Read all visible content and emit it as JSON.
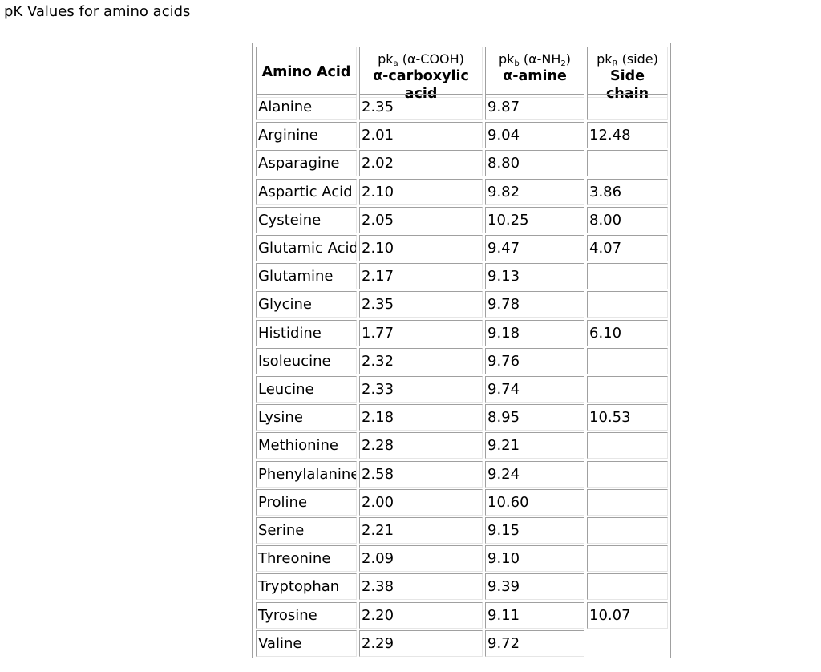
{
  "page": {
    "title": "pK Values for amino acids"
  },
  "table": {
    "headers": [
      {
        "main": "Amino Acid",
        "sub": ""
      },
      {
        "symbol": "pk",
        "symbol_sub": "a",
        "paren": " (α-COOH)",
        "main": "α-carboxylic acid"
      },
      {
        "symbol": "pk",
        "symbol_sub": "b",
        "paren": " (α-NH",
        "paren_sub": "2",
        "paren_end": ")",
        "main": "α-amine"
      },
      {
        "symbol": "pk",
        "symbol_sub": "R",
        "paren": " (side)",
        "main": "Side chain"
      }
    ],
    "rows": [
      {
        "name": "Alanine",
        "pka": "2.35",
        "pkb": "9.87",
        "pkr": ""
      },
      {
        "name": "Arginine",
        "pka": "2.01",
        "pkb": "9.04",
        "pkr": "12.48"
      },
      {
        "name": "Asparagine",
        "pka": "2.02",
        "pkb": "8.80",
        "pkr": ""
      },
      {
        "name": "Aspartic Acid",
        "pka": "2.10",
        "pkb": "9.82",
        "pkr": "3.86"
      },
      {
        "name": "Cysteine",
        "pka": "2.05",
        "pkb": "10.25",
        "pkr": "8.00"
      },
      {
        "name": "Glutamic Acid",
        "pka": "2.10",
        "pkb": "9.47",
        "pkr": "4.07"
      },
      {
        "name": "Glutamine",
        "pka": "2.17",
        "pkb": "9.13",
        "pkr": ""
      },
      {
        "name": "Glycine",
        "pka": "2.35",
        "pkb": "9.78",
        "pkr": ""
      },
      {
        "name": "Histidine",
        "pka": "1.77",
        "pkb": "9.18",
        "pkr": "6.10"
      },
      {
        "name": "Isoleucine",
        "pka": "2.32",
        "pkb": "9.76",
        "pkr": ""
      },
      {
        "name": "Leucine",
        "pka": "2.33",
        "pkb": "9.74",
        "pkr": ""
      },
      {
        "name": "Lysine",
        "pka": "2.18",
        "pkb": "8.95",
        "pkr": "10.53"
      },
      {
        "name": "Methionine",
        "pka": "2.28",
        "pkb": "9.21",
        "pkr": ""
      },
      {
        "name": "Phenylalanine",
        "pka": "2.58",
        "pkb": "9.24",
        "pkr": ""
      },
      {
        "name": "Proline",
        "pka": "2.00",
        "pkb": "10.60",
        "pkr": ""
      },
      {
        "name": "Serine",
        "pka": "2.21",
        "pkb": "9.15",
        "pkr": ""
      },
      {
        "name": "Threonine",
        "pka": "2.09",
        "pkb": "9.10",
        "pkr": ""
      },
      {
        "name": "Tryptophan",
        "pka": "2.38",
        "pkb": "9.39",
        "pkr": ""
      },
      {
        "name": "Tyrosine",
        "pka": "2.20",
        "pkb": "9.11",
        "pkr": "10.07"
      },
      {
        "name": "Valine",
        "pka": "2.29",
        "pkb": "9.72",
        "pkr": ""
      }
    ]
  }
}
